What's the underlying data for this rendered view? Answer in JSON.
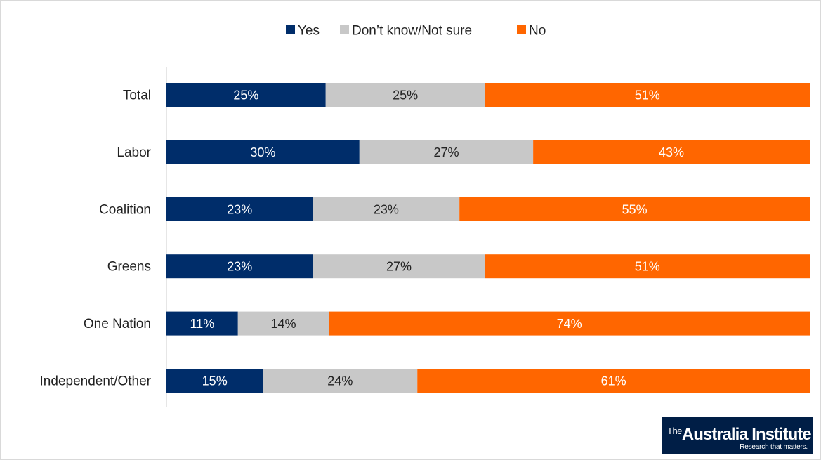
{
  "chart_data": {
    "type": "bar",
    "orientation": "horizontal",
    "stacked": true,
    "percent_stacked": true,
    "categories": [
      "Total",
      "Labor",
      "Coalition",
      "Greens",
      "One Nation",
      "Independent/Other"
    ],
    "series": [
      {
        "name": "Yes",
        "color": "#002d6a",
        "values": [
          25,
          30,
          23,
          23,
          11,
          15
        ],
        "labels": [
          "25%",
          "30%",
          "23%",
          "23%",
          "11%",
          "15%"
        ],
        "label_color": "#ffffff"
      },
      {
        "name": "Don’t know/Not sure",
        "color": "#c8c8c8",
        "values": [
          25,
          27,
          23,
          27,
          14,
          24
        ],
        "labels": [
          "25%",
          "27%",
          "23%",
          "27%",
          "14%",
          "24%"
        ],
        "label_color": "#222222"
      },
      {
        "name": "No",
        "color": "#ff6600",
        "values": [
          51,
          43,
          55,
          51,
          74,
          61
        ],
        "labels": [
          "51%",
          "43%",
          "55%",
          "51%",
          "74%",
          "61%"
        ],
        "label_color": "#ffffff"
      }
    ],
    "legend_position": "top-center",
    "grid": false,
    "axis_line": true
  },
  "logo": {
    "superscript": "The",
    "name": "Australia Institute",
    "tagline": "Research that matters."
  }
}
